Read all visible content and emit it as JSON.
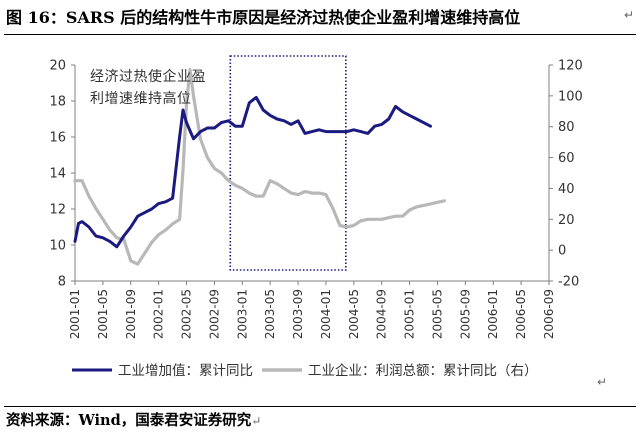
{
  "title": "图 16：SARS 后的结构性牛市原因是经济过热使企业盈利增速维持高位",
  "source": "资料来源：Wind，国泰君安证券研究",
  "return_mark": "↵",
  "colors": {
    "industrial": "#1b1a80",
    "profit": "#b8b8b8",
    "axis": "#808080",
    "box": "#1b1a80",
    "text": "#333333"
  },
  "chart_data": {
    "type": "line",
    "x_ticks": [
      "2001-01",
      "2001-05",
      "2001-09",
      "2002-01",
      "2002-05",
      "2002-09",
      "2003-01",
      "2003-05",
      "2003-09",
      "2004-01",
      "2004-05",
      "2004-09",
      "2005-01",
      "2005-05",
      "2005-09",
      "2006-01",
      "2006-05",
      "2006-09"
    ],
    "left_axis": {
      "min": 8,
      "max": 20,
      "ticks": [
        8,
        10,
        12,
        14,
        16,
        18,
        20
      ]
    },
    "right_axis": {
      "min": -20,
      "max": 120,
      "ticks": [
        -20,
        0,
        20,
        40,
        60,
        80,
        100,
        120
      ]
    },
    "annotation": [
      "经济过热使企业盈",
      "利增速维持高位"
    ],
    "highlight_range": {
      "from": "2003-01",
      "to": "2004-05"
    },
    "series": [
      {
        "name": "工业增加值：累计同比",
        "axis": "left",
        "points": [
          [
            0,
            10.2
          ],
          [
            0.5,
            11.2
          ],
          [
            1,
            11.3
          ],
          [
            2,
            11.0
          ],
          [
            3,
            10.5
          ],
          [
            4,
            10.4
          ],
          [
            5,
            10.2
          ],
          [
            6,
            9.9
          ],
          [
            7,
            10.5
          ],
          [
            8,
            11.0
          ],
          [
            9,
            11.6
          ],
          [
            10,
            11.8
          ],
          [
            11,
            12.0
          ],
          [
            12,
            12.3
          ],
          [
            13,
            12.4
          ],
          [
            14,
            12.6
          ],
          [
            15,
            16.0
          ],
          [
            15.5,
            17.5
          ],
          [
            16,
            16.8
          ],
          [
            17,
            15.9
          ],
          [
            18,
            16.3
          ],
          [
            19,
            16.5
          ],
          [
            20,
            16.5
          ],
          [
            21,
            16.8
          ],
          [
            22,
            16.9
          ],
          [
            23,
            16.6
          ],
          [
            24,
            16.6
          ],
          [
            25,
            17.9
          ],
          [
            26,
            18.2
          ],
          [
            27,
            17.5
          ],
          [
            28,
            17.2
          ],
          [
            29,
            17.0
          ],
          [
            30,
            16.9
          ],
          [
            31,
            16.7
          ],
          [
            32,
            16.9
          ],
          [
            33,
            16.2
          ],
          [
            34,
            16.3
          ],
          [
            35,
            16.4
          ],
          [
            36,
            16.3
          ],
          [
            37,
            16.3
          ],
          [
            38,
            16.3
          ],
          [
            39,
            16.3
          ],
          [
            40,
            16.4
          ],
          [
            41,
            16.3
          ],
          [
            42,
            16.2
          ],
          [
            43,
            16.6
          ],
          [
            44,
            16.7
          ],
          [
            45,
            17.0
          ],
          [
            46,
            17.7
          ],
          [
            47,
            17.4
          ],
          [
            48,
            17.2
          ],
          [
            49,
            17.0
          ],
          [
            50,
            16.8
          ],
          [
            51,
            16.6
          ]
        ]
      },
      {
        "name": "工业企业：利润总额：累计同比（右）",
        "axis": "right",
        "points": [
          [
            0,
            45
          ],
          [
            1,
            45
          ],
          [
            2,
            35
          ],
          [
            3,
            27
          ],
          [
            4,
            20
          ],
          [
            5,
            13
          ],
          [
            6,
            8
          ],
          [
            7,
            7
          ],
          [
            8,
            -7
          ],
          [
            9,
            -9
          ],
          [
            10,
            -2
          ],
          [
            11,
            5
          ],
          [
            12,
            10
          ],
          [
            13,
            13
          ],
          [
            14,
            17
          ],
          [
            15,
            20
          ],
          [
            15.5,
            52
          ],
          [
            16,
            95
          ],
          [
            16.5,
            117
          ],
          [
            17,
            100
          ],
          [
            18,
            72
          ],
          [
            19,
            60
          ],
          [
            20,
            53
          ],
          [
            21,
            50
          ],
          [
            22,
            45
          ],
          [
            23,
            42
          ],
          [
            24,
            40
          ],
          [
            25,
            37
          ],
          [
            26,
            35
          ],
          [
            27,
            35
          ],
          [
            28,
            45
          ],
          [
            29,
            43
          ],
          [
            30,
            40
          ],
          [
            31,
            37
          ],
          [
            32,
            36
          ],
          [
            33,
            38
          ],
          [
            34,
            37
          ],
          [
            35,
            37
          ],
          [
            36,
            36
          ],
          [
            37,
            27
          ],
          [
            38,
            16
          ],
          [
            39,
            15
          ],
          [
            40,
            16
          ],
          [
            41,
            19
          ],
          [
            42,
            20
          ],
          [
            43,
            20
          ],
          [
            44,
            20
          ],
          [
            45,
            21
          ],
          [
            46,
            22
          ],
          [
            47,
            22
          ],
          [
            48,
            26
          ],
          [
            49,
            28
          ],
          [
            50,
            29
          ],
          [
            51,
            30
          ],
          [
            52,
            31
          ],
          [
            53,
            32
          ]
        ]
      }
    ]
  }
}
